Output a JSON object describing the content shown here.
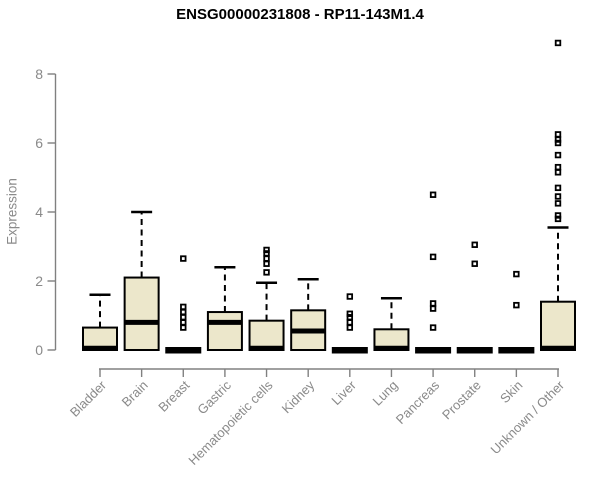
{
  "title": "ENSG00000231808 - RP11-143M1.4",
  "colors": {
    "box_fill": "#ece7cb",
    "box_stroke": "#000000",
    "median": "#000000",
    "axis": "#808080",
    "tick_label": "#8a8a8a",
    "title_color": "#000000",
    "background": "#ffffff"
  },
  "chart_data": {
    "type": "boxplot",
    "title": "ENSG00000231808 - RP11-143M1.4",
    "xlabel": "",
    "ylabel": "Expression",
    "ylim": [
      0,
      8
    ],
    "yticks": [
      0,
      2,
      4,
      6,
      8
    ],
    "grid": false,
    "legend": "none",
    "categories": [
      "Bladder",
      "Brain",
      "Breast",
      "Gastric",
      "Hematopoietic cells",
      "Kidney",
      "Liver",
      "Lung",
      "Pancreas",
      "Prostate",
      "Skin",
      "Unknown / Other"
    ],
    "series": [
      {
        "name": "Bladder",
        "q1": 0,
        "median": 0.05,
        "q3": 0.65,
        "whisker_low": 0,
        "whisker_high": 1.6,
        "outliers": []
      },
      {
        "name": "Brain",
        "q1": 0,
        "median": 0.8,
        "q3": 2.1,
        "whisker_low": 0,
        "whisker_high": 4.0,
        "outliers": []
      },
      {
        "name": "Breast",
        "q1": 0,
        "median": 0,
        "q3": 0,
        "whisker_low": 0,
        "whisker_high": 0,
        "outliers": [
          2.65,
          1.25,
          1.1,
          0.95,
          0.8,
          0.65
        ]
      },
      {
        "name": "Gastric",
        "q1": 0,
        "median": 0.8,
        "q3": 1.1,
        "whisker_low": 0,
        "whisker_high": 2.4,
        "outliers": []
      },
      {
        "name": "Hematopoietic cells",
        "q1": 0,
        "median": 0.05,
        "q3": 0.85,
        "whisker_low": 0,
        "whisker_high": 1.95,
        "outliers": [
          2.9,
          2.8,
          2.65,
          2.5,
          2.25
        ]
      },
      {
        "name": "Kidney",
        "q1": 0,
        "median": 0.55,
        "q3": 1.15,
        "whisker_low": 0,
        "whisker_high": 2.05,
        "outliers": []
      },
      {
        "name": "Liver",
        "q1": 0,
        "median": 0,
        "q3": 0,
        "whisker_low": 0,
        "whisker_high": 0,
        "outliers": [
          1.55,
          1.05,
          0.95,
          0.8,
          0.65
        ]
      },
      {
        "name": "Lung",
        "q1": 0,
        "median": 0.05,
        "q3": 0.6,
        "whisker_low": 0,
        "whisker_high": 1.5,
        "outliers": []
      },
      {
        "name": "Pancreas",
        "q1": 0,
        "median": 0,
        "q3": 0,
        "whisker_low": 0,
        "whisker_high": 0,
        "outliers": [
          4.5,
          2.7,
          1.35,
          1.2,
          0.65
        ]
      },
      {
        "name": "Prostate",
        "q1": 0,
        "median": 0,
        "q3": 0,
        "whisker_low": 0,
        "whisker_high": 0,
        "outliers": [
          3.05,
          2.5
        ]
      },
      {
        "name": "Skin",
        "q1": 0,
        "median": 0,
        "q3": 0,
        "whisker_low": 0,
        "whisker_high": 0,
        "outliers": [
          2.2,
          1.3
        ]
      },
      {
        "name": "Unknown / Other",
        "q1": 0,
        "median": 0.05,
        "q3": 1.4,
        "whisker_low": 0,
        "whisker_high": 3.55,
        "outliers": [
          8.9,
          6.25,
          6.1,
          6.0,
          5.65,
          5.3,
          5.15,
          4.7,
          4.45,
          4.25,
          3.9,
          3.8
        ]
      }
    ]
  }
}
